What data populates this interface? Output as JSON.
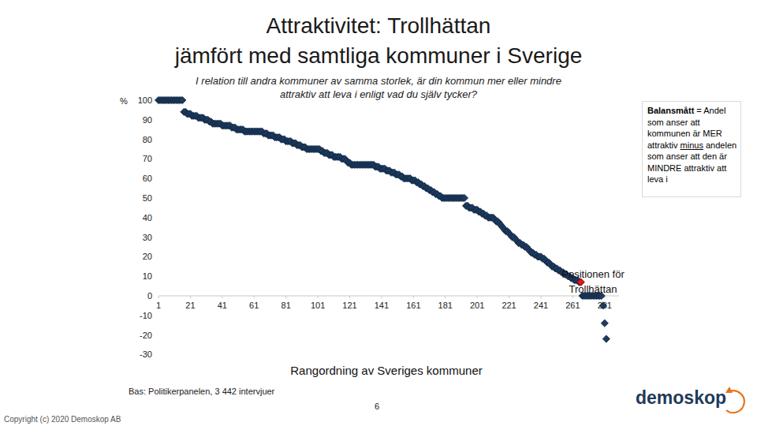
{
  "chart_data": {
    "type": "scatter",
    "title": [
      "Attraktivitet: Trollhättan",
      "jämfört med samtliga kommuner i Sverige"
    ],
    "subtitle": [
      "I relation till andra kommuner av samma storlek, är din kommun mer eller mindre",
      "attraktiv att leva i enligt vad du själv tycker?"
    ],
    "ylabel": "%",
    "xlabel": "Rangordning av Sveriges kommuner",
    "x": [
      1,
      2,
      3,
      4,
      5,
      6,
      7,
      8,
      9,
      10,
      11,
      12,
      13,
      14,
      15,
      16,
      17,
      18,
      19,
      20,
      21,
      22,
      23,
      24,
      25,
      26,
      27,
      28,
      29,
      30,
      31,
      32,
      33,
      34,
      35,
      36,
      37,
      38,
      39,
      40,
      41,
      42,
      43,
      44,
      45,
      46,
      47,
      48,
      49,
      50,
      51,
      52,
      53,
      54,
      55,
      56,
      57,
      58,
      59,
      60,
      61,
      62,
      63,
      64,
      65,
      66,
      67,
      68,
      69,
      70,
      71,
      72,
      73,
      74,
      75,
      76,
      77,
      78,
      79,
      80,
      81,
      82,
      83,
      84,
      85,
      86,
      87,
      88,
      89,
      90,
      91,
      92,
      93,
      94,
      95,
      96,
      97,
      98,
      99,
      100,
      101,
      102,
      103,
      104,
      105,
      106,
      107,
      108,
      109,
      110,
      111,
      112,
      113,
      114,
      115,
      116,
      117,
      118,
      119,
      120,
      121,
      122,
      123,
      124,
      125,
      126,
      127,
      128,
      129,
      130,
      131,
      132,
      133,
      134,
      135,
      136,
      137,
      138,
      139,
      140,
      141,
      142,
      143,
      144,
      145,
      146,
      147,
      148,
      149,
      150,
      151,
      152,
      153,
      154,
      155,
      156,
      157,
      158,
      159,
      160,
      161,
      162,
      163,
      164,
      165,
      166,
      167,
      168,
      169,
      170,
      171,
      172,
      173,
      174,
      175,
      176,
      177,
      178,
      179,
      180,
      181,
      182,
      183,
      184,
      185,
      186,
      187,
      188,
      189,
      190,
      191,
      192,
      193,
      194,
      195,
      196,
      197,
      198,
      199,
      200,
      201,
      202,
      203,
      204,
      205,
      206,
      207,
      208,
      209,
      210,
      211,
      212,
      213,
      214,
      215,
      216,
      217,
      218,
      219,
      220,
      221,
      222,
      223,
      224,
      225,
      226,
      227,
      228,
      229,
      230,
      231,
      232,
      233,
      234,
      235,
      236,
      237,
      238,
      239,
      240,
      241,
      242,
      243,
      244,
      245,
      246,
      247,
      248,
      249,
      250,
      251,
      252,
      253,
      254,
      255,
      256,
      257,
      258,
      259,
      260,
      261,
      262,
      263,
      264,
      265,
      266,
      267,
      268,
      269,
      270,
      271,
      272,
      273,
      274,
      275,
      276,
      277,
      278,
      279,
      280,
      281,
      282
    ],
    "series": [
      {
        "color": "#1e3a5f",
        "marker": "diamond",
        "values": [
          100,
          100,
          100,
          100,
          100,
          100,
          100,
          100,
          100,
          100,
          100,
          100,
          100,
          100,
          100,
          100,
          94,
          94,
          93,
          93,
          93,
          92,
          92,
          92,
          92,
          91,
          91,
          91,
          91,
          90,
          90,
          90,
          89,
          89,
          88,
          88,
          88,
          88,
          88,
          88,
          87,
          87,
          87,
          87,
          87,
          87,
          86,
          86,
          86,
          85,
          85,
          85,
          85,
          85,
          84,
          84,
          84,
          84,
          84,
          84,
          84,
          84,
          84,
          84,
          84,
          84,
          83,
          83,
          83,
          82,
          82,
          82,
          82,
          81,
          81,
          81,
          81,
          80,
          80,
          80,
          79,
          79,
          79,
          79,
          78,
          78,
          78,
          77,
          77,
          77,
          76,
          76,
          76,
          75,
          75,
          75,
          75,
          75,
          75,
          75,
          75,
          75,
          74,
          74,
          73,
          73,
          73,
          72,
          72,
          72,
          71,
          71,
          71,
          71,
          71,
          70,
          70,
          70,
          69,
          68,
          68,
          67,
          67,
          67,
          67,
          67,
          67,
          67,
          67,
          67,
          67,
          67,
          67,
          67,
          67,
          67,
          66,
          66,
          66,
          65,
          65,
          65,
          65,
          64,
          64,
          64,
          63,
          63,
          63,
          62,
          62,
          62,
          61,
          61,
          60,
          60,
          60,
          60,
          60,
          59,
          59,
          59,
          58,
          58,
          57,
          57,
          56,
          56,
          55,
          55,
          54,
          54,
          53,
          53,
          52,
          52,
          51,
          51,
          50,
          50,
          50,
          50,
          50,
          50,
          50,
          50,
          50,
          50,
          50,
          50,
          50,
          50,
          50,
          46,
          46,
          45,
          45,
          45,
          44,
          44,
          44,
          43,
          43,
          42,
          42,
          41,
          41,
          40,
          40,
          40,
          40,
          39,
          38,
          38,
          37,
          36,
          35,
          34,
          33,
          33,
          32,
          31,
          30,
          30,
          29,
          28,
          27,
          27,
          26,
          26,
          25,
          25,
          24,
          23,
          22,
          22,
          21,
          21,
          20,
          20,
          20,
          19,
          19,
          18,
          17,
          17,
          16,
          15,
          15,
          14,
          14,
          13,
          13,
          12,
          12,
          11,
          11,
          10,
          10,
          9,
          9,
          8,
          8,
          8,
          7,
          7,
          0,
          0,
          0,
          0,
          0,
          0,
          0,
          0,
          0,
          0,
          0,
          0,
          0,
          -5,
          -14,
          -22
        ]
      }
    ],
    "highlight": {
      "x": 266,
      "y": 7,
      "color": "#e8141a",
      "label": "Positionen för Trollhättan"
    },
    "xlim": [
      1,
      290
    ],
    "xticks": [
      1,
      21,
      41,
      61,
      81,
      101,
      121,
      141,
      161,
      181,
      201,
      221,
      241,
      261,
      281
    ],
    "ylim": [
      -30,
      100
    ],
    "yticks": [
      -30,
      -20,
      -10,
      0,
      10,
      20,
      30,
      40,
      50,
      60,
      70,
      80,
      90,
      100
    ],
    "grid": false,
    "note": {
      "term": "Balansmått",
      "text": "= Andel som anser att kommunen är MER attraktiv",
      "underlined": "minus",
      "rest": "andelen som anser att den är MINDRE attraktiv att leva i"
    },
    "source": "Bas: Politikerpanelen, 3 442 intervjuer",
    "page": "6",
    "copyright": "Copyright (c) 2020 Demoskop AB",
    "logo": "demoskop"
  }
}
